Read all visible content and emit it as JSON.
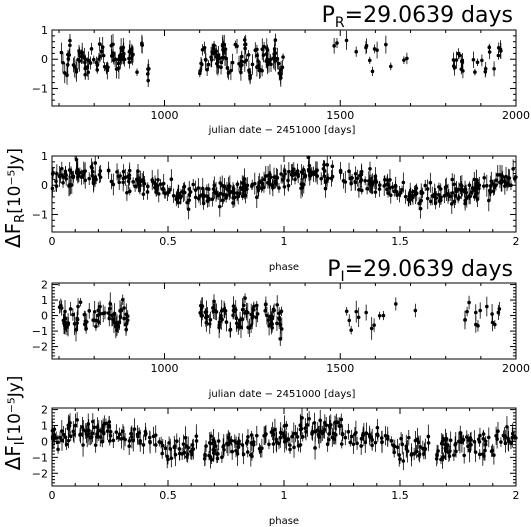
{
  "chart_data": [
    {
      "type": "scatter",
      "title": "P_R=29.0639 days",
      "title_main": "P",
      "title_sub": "R",
      "title_rest": "=29.0639 days",
      "xlabel": "julian date − 2451000 [days]",
      "xlim": [
        680,
        2000
      ],
      "ylim": [
        -1.6,
        1.0
      ],
      "xticks": [
        "1000",
        "1500",
        "2000"
      ],
      "xtick_values": [
        1000,
        1500,
        2000
      ],
      "yticks": [
        "1",
        "0",
        "−1"
      ],
      "ytick_values": [
        1,
        0,
        -1
      ],
      "clusters": [
        {
          "x0": 700,
          "x1": 960,
          "n": 90,
          "amp": 0.35,
          "sd": 0.3,
          "err": 0.25
        },
        {
          "x0": 1100,
          "x1": 1340,
          "n": 100,
          "amp": 0.35,
          "sd": 0.3,
          "err": 0.25
        },
        {
          "x0": 1480,
          "x1": 1700,
          "n": 14,
          "amp": 0.4,
          "sd": 0.35,
          "err": 0.25
        },
        {
          "x0": 1820,
          "x1": 1960,
          "n": 24,
          "amp": 0.4,
          "sd": 0.3,
          "err": 0.22
        }
      ]
    },
    {
      "type": "scatter",
      "xlabel": "phase",
      "xlim": [
        0,
        2
      ],
      "ylim": [
        -1.6,
        1.0
      ],
      "xticks": [
        "0",
        "0.5",
        "1",
        "1.5",
        "2"
      ],
      "xtick_values": [
        0,
        0.5,
        1,
        1.5,
        2
      ],
      "yticks": [
        "1",
        "0",
        "−1"
      ],
      "ytick_values": [
        1,
        0,
        -1
      ],
      "phase_points": 230,
      "amp": 0.35,
      "sd": 0.25,
      "err": 0.25
    },
    {
      "type": "scatter",
      "title": "P_I=29.0639 days",
      "title_main": "P",
      "title_sub": "I",
      "title_rest": "=29.0639 days",
      "xlabel": "julian date − 2451000 [days]",
      "xlim": [
        680,
        2000
      ],
      "ylim": [
        -2.8,
        2.1
      ],
      "xticks": [
        "1000",
        "1500",
        "2000"
      ],
      "xtick_values": [
        1000,
        1500,
        2000
      ],
      "yticks": [
        "2",
        "1",
        "0",
        "−1",
        "−2"
      ],
      "ytick_values": [
        2,
        1,
        0,
        -1,
        -2
      ],
      "clusters": [
        {
          "x0": 700,
          "x1": 900,
          "n": 70,
          "amp": 0.5,
          "sd": 0.6,
          "err": 0.5
        },
        {
          "x0": 1100,
          "x1": 1340,
          "n": 90,
          "amp": 0.5,
          "sd": 0.6,
          "err": 0.5
        },
        {
          "x0": 1480,
          "x1": 1720,
          "n": 12,
          "amp": 0.6,
          "sd": 0.7,
          "err": 0.5
        },
        {
          "x0": 1820,
          "x1": 1960,
          "n": 14,
          "amp": 0.6,
          "sd": 0.6,
          "err": 0.45
        }
      ]
    },
    {
      "type": "scatter",
      "xlabel": "phase",
      "xlim": [
        0,
        2
      ],
      "ylim": [
        -2.8,
        2.1
      ],
      "xticks": [
        "0",
        "0.5",
        "1",
        "1.5",
        "2"
      ],
      "xtick_values": [
        0,
        0.5,
        1,
        1.5,
        2
      ],
      "yticks": [
        "2",
        "1",
        "0",
        "−1",
        "−2"
      ],
      "ytick_values": [
        2,
        1,
        0,
        -1,
        -2
      ],
      "phase_points": 200,
      "amp": 0.55,
      "sd": 0.55,
      "err": 0.5
    }
  ],
  "ylabels": [
    {
      "main": "ΔF",
      "sub": "R",
      "rest": "[10⁻⁵Jy]"
    },
    {
      "main": "ΔF",
      "sub": "I",
      "rest": "[10⁻⁵Jy]"
    }
  ],
  "colors": {
    "ink": "#000000",
    "background": "#ffffff"
  }
}
